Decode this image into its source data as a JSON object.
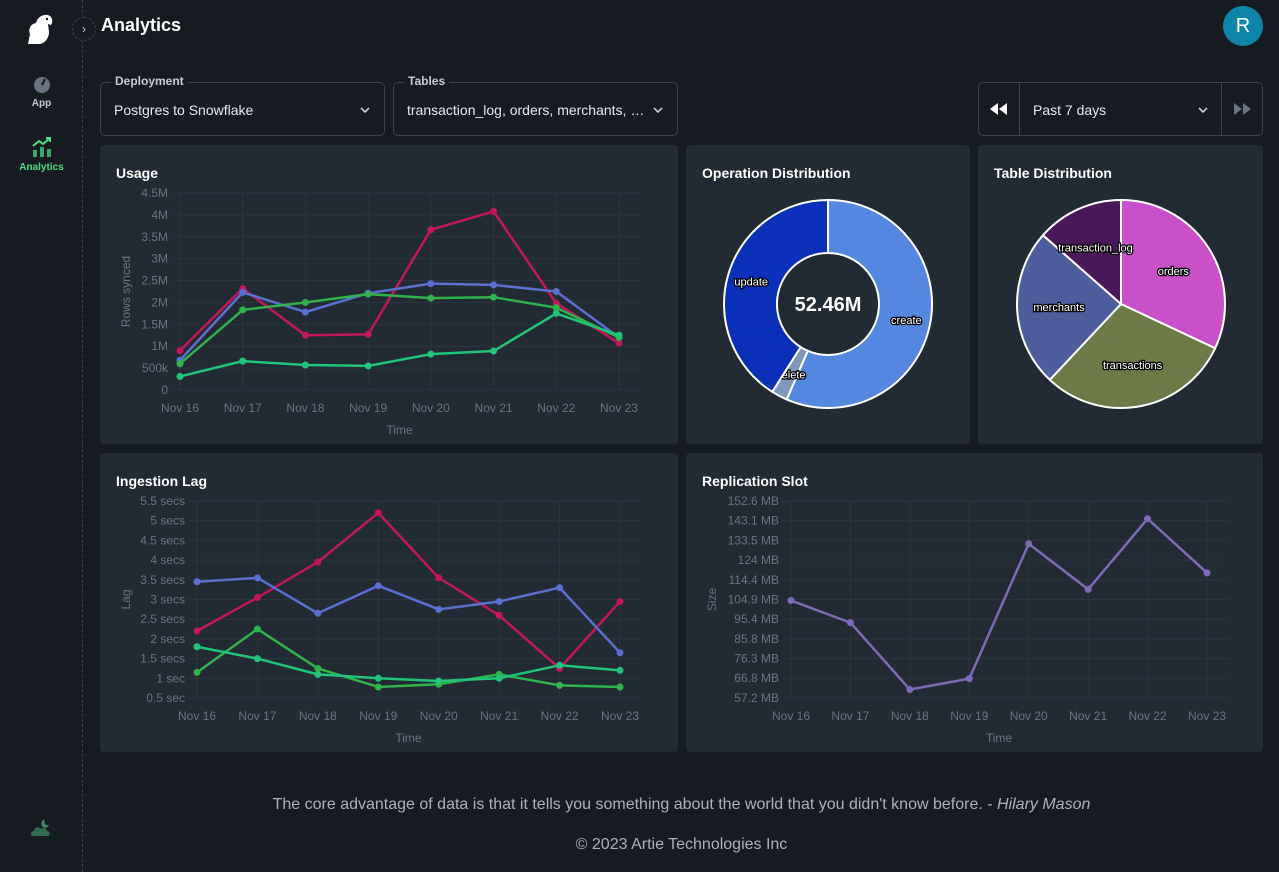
{
  "sidebar": {
    "items": [
      {
        "label": "App",
        "icon": "speedometer-icon"
      },
      {
        "label": "Analytics",
        "icon": "chart-icon"
      }
    ],
    "accent": "#4ade80"
  },
  "header": {
    "title": "Analytics",
    "avatar_initial": "R"
  },
  "filters": {
    "deployment": {
      "label": "Deployment",
      "value": "Postgres to Snowflake"
    },
    "tables": {
      "label": "Tables",
      "value": "transaction_log, orders, merchants, …"
    },
    "range": {
      "value": "Past 7 days"
    }
  },
  "footer": {
    "quote": "The core advantage of data is that it tells you something about the world that you didn't know before. - ",
    "author": "Hilary Mason",
    "copyright": "© 2023 Artie Technologies Inc"
  },
  "chart_data": [
    {
      "id": "usage",
      "type": "line",
      "title": "Usage",
      "xlabel": "Time",
      "ylabel": "Rows synced",
      "categories": [
        "Nov 16",
        "Nov 17",
        "Nov 18",
        "Nov 19",
        "Nov 20",
        "Nov 21",
        "Nov 22",
        "Nov 23"
      ],
      "ylim": [
        0,
        4500000
      ],
      "yticks": [
        0,
        500000,
        1000000,
        1500000,
        2000000,
        2500000,
        3000000,
        3500000,
        4000000,
        4500000
      ],
      "ytick_labels": [
        "0",
        "500k",
        "1M",
        "1.5M",
        "2M",
        "2.5M",
        "3M",
        "3.5M",
        "4M",
        "4.5M"
      ],
      "series": [
        {
          "color": "#c2185b",
          "values": [
            900000,
            2320000,
            1250000,
            1270000,
            3660000,
            4080000,
            1980000,
            1070000
          ]
        },
        {
          "color": "#5b6fd0",
          "values": [
            680000,
            2230000,
            1780000,
            2210000,
            2430000,
            2400000,
            2250000,
            1200000
          ]
        },
        {
          "color": "#2fb34a",
          "values": [
            600000,
            1830000,
            2000000,
            2190000,
            2100000,
            2120000,
            1880000,
            1200000
          ]
        },
        {
          "color": "#20c47a",
          "values": [
            310000,
            660000,
            570000,
            550000,
            820000,
            890000,
            1750000,
            1250000
          ]
        }
      ]
    },
    {
      "id": "operations",
      "type": "pie",
      "title": "Operation Distribution",
      "center_label": "52.46M",
      "labels": [
        "create",
        "delete",
        "update"
      ],
      "values": [
        56.5,
        2.5,
        41.0
      ],
      "colors": [
        "#5488e0",
        "#7e96b8",
        "#0a2fb8"
      ]
    },
    {
      "id": "tables",
      "type": "pie",
      "title": "Table Distribution",
      "labels": [
        "orders",
        "transactions",
        "merchants",
        "transaction_log"
      ],
      "values": [
        32,
        30,
        24.5,
        13.5
      ],
      "colors": [
        "#c850c8",
        "#6b7a46",
        "#4e5e9c",
        "#4a1858"
      ]
    },
    {
      "id": "lag",
      "type": "line",
      "title": "Ingestion Lag",
      "xlabel": "Time",
      "ylabel": "Lag",
      "categories": [
        "Nov 16",
        "Nov 17",
        "Nov 18",
        "Nov 19",
        "Nov 20",
        "Nov 21",
        "Nov 22",
        "Nov 23"
      ],
      "ylim": [
        0.5,
        5.5
      ],
      "yticks": [
        0.5,
        1,
        1.5,
        2,
        2.5,
        3,
        3.5,
        4,
        4.5,
        5,
        5.5
      ],
      "ytick_labels": [
        "0.5 sec",
        "1 sec",
        "1.5 secs",
        "2 secs",
        "2.5 secs",
        "3 secs",
        "3.5 secs",
        "4 secs",
        "4.5 secs",
        "5 secs",
        "5.5 secs"
      ],
      "series": [
        {
          "color": "#c2185b",
          "values": [
            2.2,
            3.05,
            3.95,
            5.2,
            3.55,
            2.6,
            1.25,
            2.95
          ]
        },
        {
          "color": "#5b6fd0",
          "values": [
            3.45,
            3.55,
            2.65,
            3.35,
            2.75,
            2.95,
            3.3,
            1.65
          ]
        },
        {
          "color": "#2fb34a",
          "values": [
            1.15,
            2.25,
            1.25,
            0.78,
            0.85,
            1.1,
            0.82,
            0.78
          ]
        },
        {
          "color": "#20c47a",
          "values": [
            1.8,
            1.5,
            1.1,
            1.0,
            0.93,
            1.0,
            1.33,
            1.2
          ]
        }
      ]
    },
    {
      "id": "replication",
      "type": "line",
      "title": "Replication Slot",
      "xlabel": "Time",
      "ylabel": "Size",
      "categories": [
        "Nov 16",
        "Nov 17",
        "Nov 18",
        "Nov 19",
        "Nov 20",
        "Nov 21",
        "Nov 22",
        "Nov 23"
      ],
      "ylim": [
        57.2,
        152.6
      ],
      "yticks": [
        57.2,
        66.8,
        76.3,
        85.8,
        95.4,
        104.9,
        114.4,
        124,
        133.5,
        143.1,
        152.6
      ],
      "ytick_labels": [
        "57.2 MB",
        "66.8 MB",
        "76.3 MB",
        "85.8 MB",
        "95.4 MB",
        "104.9 MB",
        "114.4 MB",
        "124 MB",
        "133.5 MB",
        "143.1 MB",
        "152.6 MB"
      ],
      "series": [
        {
          "color": "#7e6bb8",
          "values": [
            104.4,
            93.7,
            61.3,
            66.6,
            131.9,
            109.8,
            144.0,
            117.8
          ]
        }
      ]
    }
  ]
}
